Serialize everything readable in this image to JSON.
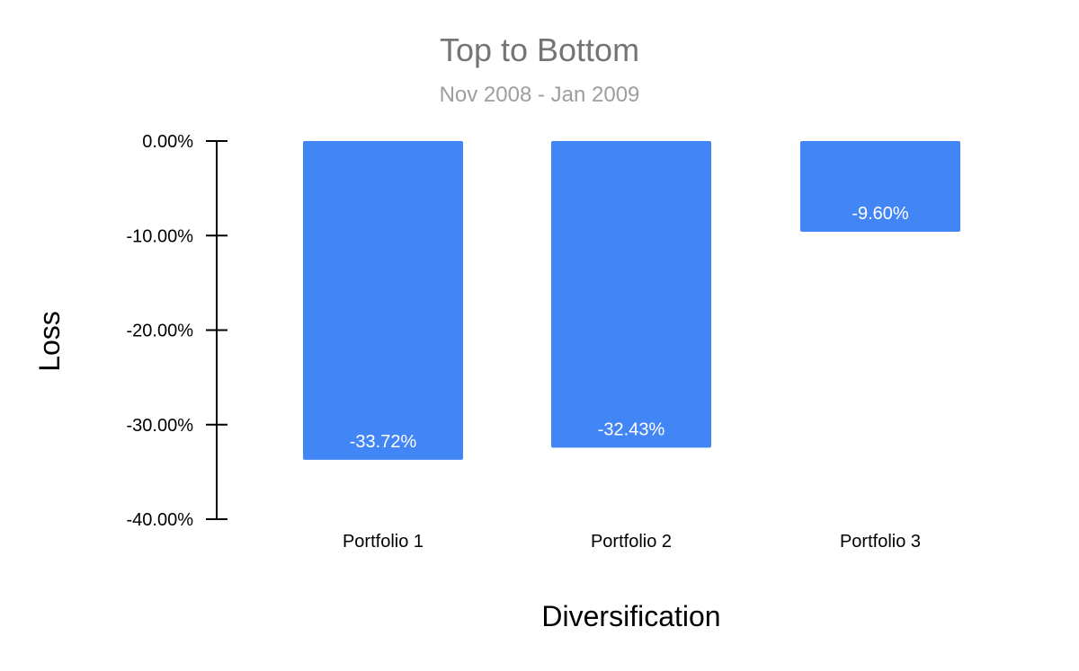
{
  "chart_data": {
    "type": "bar",
    "title": "Top to Bottom",
    "subtitle": "Nov 2008 - Jan 2009",
    "xlabel": "Diversification",
    "ylabel": "Loss",
    "categories": [
      "Portfolio 1",
      "Portfolio 2",
      "Portfolio 3"
    ],
    "values": [
      -33.72,
      -32.43,
      -9.6
    ],
    "data_labels": [
      "-33.72%",
      "-32.43%",
      "-9.60%"
    ],
    "ylim": [
      -40,
      0
    ],
    "yticks": [
      0,
      -10,
      -20,
      -30,
      -40
    ],
    "ytick_labels": [
      "0.00%",
      "-10.00%",
      "-20.00%",
      "-30.00%",
      "-40.00%"
    ],
    "grid": false,
    "legend": "none",
    "colors": {
      "bar": "#4285f4",
      "title": "#757575",
      "subtitle": "#9e9e9e",
      "axis": "#000000",
      "data_label": "#ffffff"
    }
  }
}
